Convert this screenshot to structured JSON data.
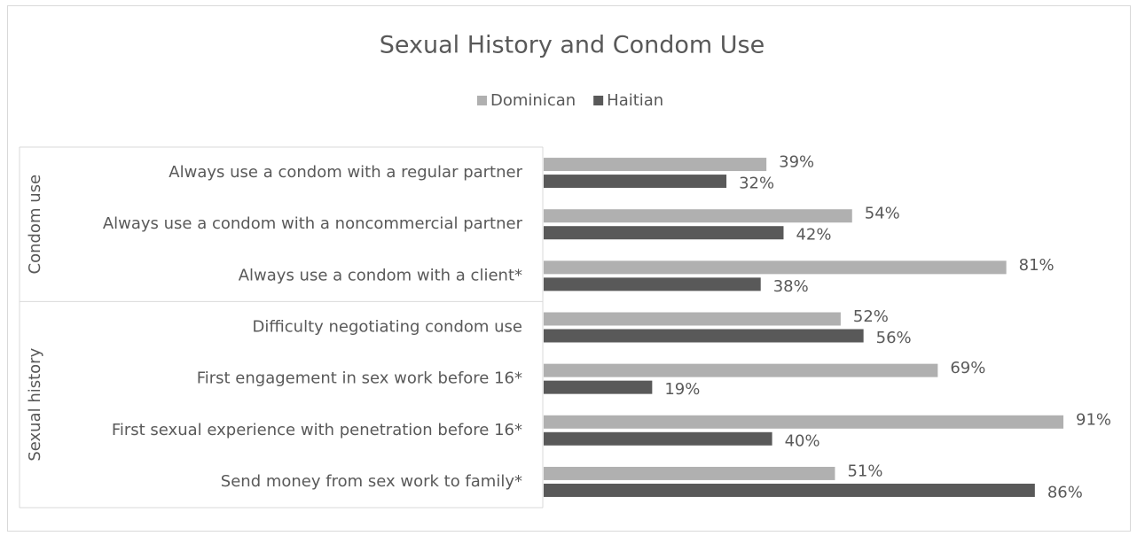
{
  "chart_data": {
    "type": "bar",
    "orientation": "horizontal",
    "title": "Sexual History and Condom Use",
    "categories": [
      "Always use a condom with a regular partner",
      "Always use a condom with a noncommercial partner",
      "Always use a condom with a client*",
      "Difficulty negotiating condom use",
      "First engagement in sex work before 16*",
      "First sexual experience with penetration before 16*",
      "Send money from sex work to family*"
    ],
    "groups": [
      {
        "label": "Condom use",
        "count": 3
      },
      {
        "label": "Sexual history",
        "count": 4
      }
    ],
    "series": [
      {
        "name": "Dominican",
        "color": "#b0b0b0",
        "values": [
          39,
          54,
          81,
          52,
          69,
          91,
          51
        ],
        "value_labels": [
          "39%",
          "54%",
          "81%",
          "52%",
          "69%",
          "91%",
          "51%"
        ]
      },
      {
        "name": "Haitian",
        "color": "#595959",
        "values": [
          32,
          42,
          38,
          56,
          19,
          40,
          86
        ],
        "value_labels": [
          "32%",
          "42%",
          "38%",
          "56%",
          "19%",
          "40%",
          "86%"
        ]
      }
    ],
    "xlim": [
      0,
      100
    ],
    "legend": "top"
  }
}
